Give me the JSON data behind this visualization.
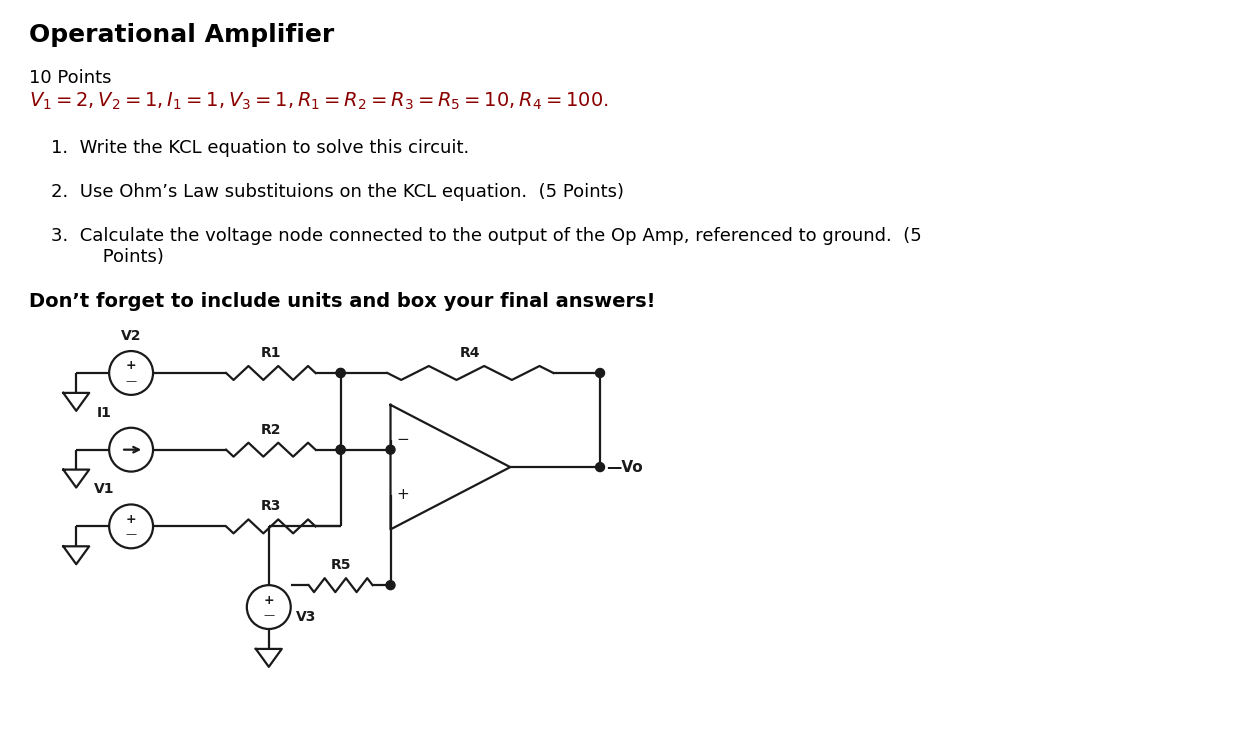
{
  "title": "Operational Amplifier",
  "title_fontsize": 18,
  "points_text": "10 Points",
  "eq_color": "#8B0000",
  "text_color": "#000000",
  "bg_color": "#ffffff",
  "circuit_color": "#1a1a1a",
  "items": [
    "1.  Write the KCL equation to solve this circuit.",
    "2.  Use Ohm’s Law substituions on the KCL equation.  (5 Points)",
    "3.  Calculate the voltage node connected to the output of the Op Amp, referenced to ground.  (5",
    "     Points)"
  ],
  "footer": "Don’t forget to include units and box your final answers!"
}
